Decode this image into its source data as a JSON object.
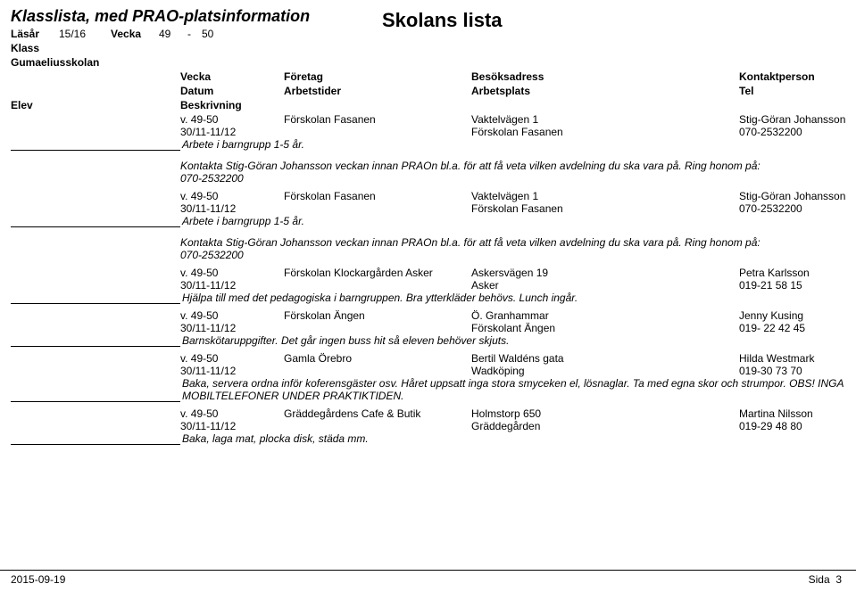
{
  "header": {
    "title": "Klasslista, med PRAO-platsinformation",
    "lasar_label": "Läsår",
    "lasar_value": "15/16",
    "vecka_label": "Vecka",
    "vecka_from": "49",
    "vecka_dash": "-",
    "vecka_to": "50",
    "klass_label": "Klass",
    "skolnamn": "Gumaeliusskolan",
    "right_title": "Skolans lista"
  },
  "columns": {
    "elev": "Elev",
    "vecka": "Vecka",
    "datum": "Datum",
    "beskrivning": "Beskrivning",
    "foretag": "Företag",
    "arbetstider": "Arbetstider",
    "besok": "Besöksadress",
    "arbetsplats": "Arbetsplats",
    "kontakt": "Kontaktperson",
    "tel": "Tel"
  },
  "entries": [
    {
      "vecka": "v. 49-50",
      "foretag": "Förskolan Fasanen",
      "besok": "Vaktelvägen 1",
      "kontakt": "Stig-Göran Johansson",
      "datum": "30/11-11/12",
      "arbetsplats": "Förskolan Fasanen",
      "tel": "070-2532200",
      "beskrivning": "Arbete i barngrupp 1-5 år.",
      "note_line1": "Kontakta Stig-Göran Johansson veckan innan PRAOn bl.a. för att få veta vilken avdelning du ska vara på. Ring honom på:",
      "note_line2": "070-2532200"
    },
    {
      "vecka": "v. 49-50",
      "foretag": "Förskolan Fasanen",
      "besok": "Vaktelvägen 1",
      "kontakt": "Stig-Göran Johansson",
      "datum": "30/11-11/12",
      "arbetsplats": "Förskolan Fasanen",
      "tel": "070-2532200",
      "beskrivning": "Arbete i barngrupp 1-5 år.",
      "note_line1": "Kontakta Stig-Göran Johansson veckan innan PRAOn bl.a. för att få veta vilken avdelning du ska vara på. Ring honom på:",
      "note_line2": "070-2532200"
    },
    {
      "vecka": "v. 49-50",
      "foretag": "Förskolan Klockargården Asker",
      "besok": "Askersvägen 19",
      "kontakt": "Petra Karlsson",
      "datum": "30/11-11/12",
      "arbetsplats": "Asker",
      "tel": "019-21 58 15",
      "beskrivning": "Hjälpa till med det pedagogiska i    barngruppen. Bra    ytterkläder behövs. Lunch ingår.",
      "note_line1": "",
      "note_line2": ""
    },
    {
      "vecka": "v. 49-50",
      "foretag": "Förskolan Ängen",
      "besok": "Ö. Granhammar",
      "kontakt": "Jenny Kusing",
      "datum": "30/11-11/12",
      "arbetsplats": "Förskolant Ängen",
      "tel": "019- 22 42 45",
      "beskrivning": "Barnskötaruppgifter. Det går ingen buss hit så eleven behöver skjuts.",
      "note_line1": "",
      "note_line2": ""
    },
    {
      "vecka": "v. 49-50",
      "foretag": "Gamla Örebro",
      "besok": "Bertil Waldéns gata",
      "kontakt": "Hilda Westmark",
      "datum": "30/11-11/12",
      "arbetsplats": "Wadköping",
      "tel": "019-30 73 70",
      "beskrivning": "Baka, servera ordna inför koferensgäster osv. Håret uppsatt inga stora smyceken el, lösnaglar. Ta    med egna skor och strumpor. OBS! INGA MOBILTELEFONER UNDER PRAKTIKTIDEN.",
      "note_line1": "",
      "note_line2": ""
    },
    {
      "vecka": "v. 49-50",
      "foretag": "Gräddegårdens Cafe & Butik",
      "besok": "Holmstorp 650",
      "kontakt": "Martina Nilsson",
      "datum": "30/11-11/12",
      "arbetsplats": "Gräddegården",
      "tel": "019-29 48 80",
      "beskrivning": "Baka, laga mat, plocka disk, städa mm.",
      "note_line1": "",
      "note_line2": ""
    }
  ],
  "footer": {
    "date": "2015-09-19",
    "page_label": "Sida",
    "page_num": "3"
  }
}
